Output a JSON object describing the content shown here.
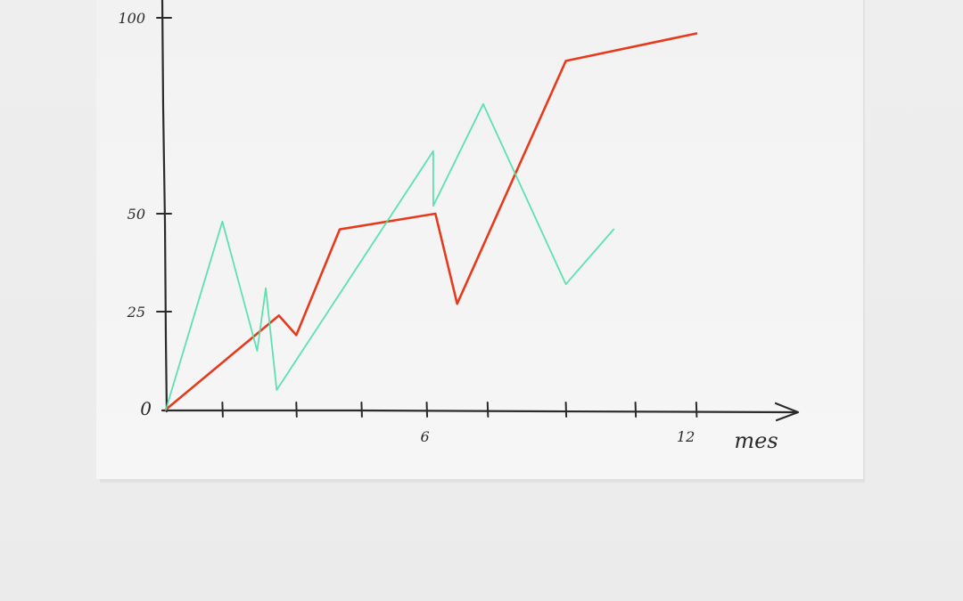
{
  "chart_data": {
    "type": "line",
    "title": "",
    "xlabel": "mes",
    "ylabel": "",
    "xlim": [
      0,
      14.5
    ],
    "ylim": [
      0,
      100
    ],
    "x_ticks": [
      1.3,
      3,
      4.5,
      6,
      7.4,
      9.2,
      10.8,
      12.2
    ],
    "x_tick_labels": [
      {
        "x": 6,
        "label": "6"
      },
      {
        "x": 12,
        "label": "12"
      }
    ],
    "y_tick_labels": [
      {
        "y": 0,
        "label": "0"
      },
      {
        "y": 25,
        "label": "25"
      },
      {
        "y": 50,
        "label": "50"
      },
      {
        "y": 100,
        "label": "100"
      }
    ],
    "grid": false,
    "series": [
      {
        "color": "#e63a1c",
        "points": [
          [
            0,
            0
          ],
          [
            2.6,
            24
          ],
          [
            3,
            19
          ],
          [
            4,
            46
          ],
          [
            6.2,
            50
          ],
          [
            6.7,
            27
          ],
          [
            9.2,
            89
          ],
          [
            12.2,
            96
          ]
        ]
      },
      {
        "color": "#4fe0a8",
        "points": [
          [
            0,
            0
          ],
          [
            1.3,
            48
          ],
          [
            2.1,
            15
          ],
          [
            2.3,
            31
          ],
          [
            2.55,
            5
          ],
          [
            6.15,
            66
          ],
          [
            6.15,
            52
          ],
          [
            7.3,
            78
          ],
          [
            9.2,
            32
          ],
          [
            10.3,
            46
          ]
        ]
      }
    ]
  }
}
